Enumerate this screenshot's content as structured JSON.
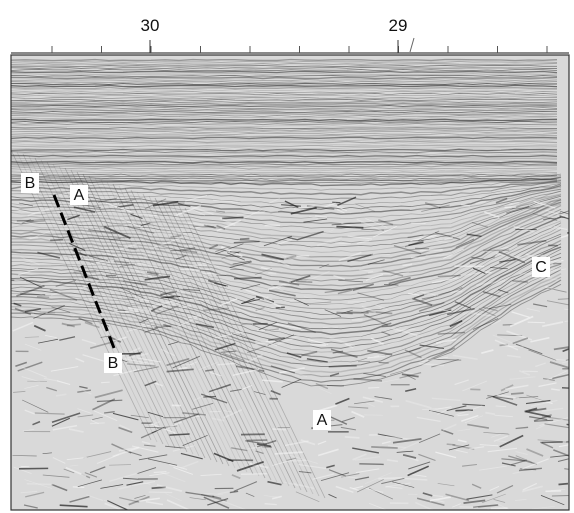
{
  "axis_labels": [
    "30",
    "29"
  ],
  "annotations": [
    "B",
    "A",
    "B",
    "A",
    "C"
  ]
}
